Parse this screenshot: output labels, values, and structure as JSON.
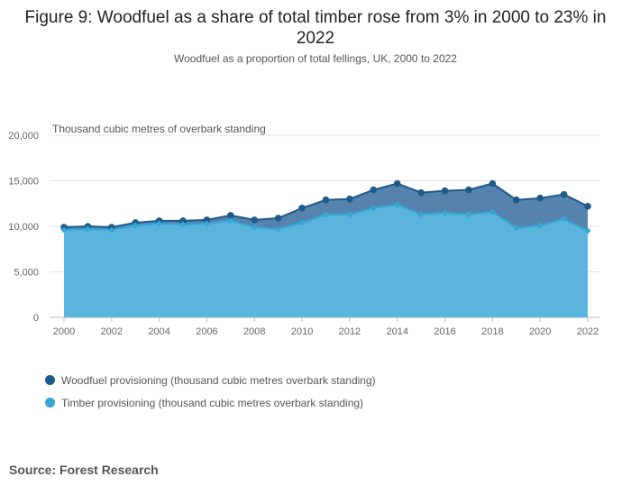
{
  "title": "Figure 9: Woodfuel as a share of total timber rose from 3% in 2000 to 23% in 2022",
  "subtitle": "Woodfuel as a proportion of total fellings, UK, 2000 to 2022",
  "source": "Source: Forest Research",
  "colors": {
    "woodfuel": "#1e5a8c",
    "timber": "#33a7d5",
    "woodfuel_fill": "#5583ae",
    "timber_fill": "#5bb4dc"
  },
  "chart_data": {
    "type": "area",
    "ylabel": "Thousand cubic metres of overbark standing",
    "xlabel": "",
    "ylim": [
      0,
      20000
    ],
    "yticks": [
      0,
      5000,
      10000,
      15000,
      20000
    ],
    "ytick_labels": [
      "0",
      "5,000",
      "10,000",
      "15,000",
      "20,000"
    ],
    "xticks": [
      2000,
      2002,
      2004,
      2006,
      2008,
      2010,
      2012,
      2014,
      2016,
      2018,
      2020,
      2022
    ],
    "x": [
      2000,
      2001,
      2002,
      2003,
      2004,
      2005,
      2006,
      2007,
      2008,
      2009,
      2010,
      2011,
      2012,
      2013,
      2014,
      2015,
      2016,
      2017,
      2018,
      2019,
      2020,
      2021,
      2022
    ],
    "grid": true,
    "legend_position": "bottom-left",
    "series": [
      {
        "name": "Woodfuel provisioning (thousand cubic metres overbark standing)",
        "values": [
          9900,
          10000,
          9900,
          10400,
          10600,
          10600,
          10700,
          11200,
          10700,
          10900,
          12000,
          12900,
          13000,
          14000,
          14700,
          13700,
          13900,
          14000,
          14700,
          12900,
          13100,
          13500,
          12200
        ]
      },
      {
        "name": "Timber provisioning (thousand cubic metres overbark standing)",
        "values": [
          9600,
          9700,
          9600,
          10100,
          10300,
          10200,
          10300,
          10600,
          9900,
          9700,
          10400,
          11300,
          11300,
          12000,
          12400,
          11300,
          11500,
          11300,
          11600,
          9800,
          10100,
          10800,
          9500
        ]
      }
    ]
  }
}
